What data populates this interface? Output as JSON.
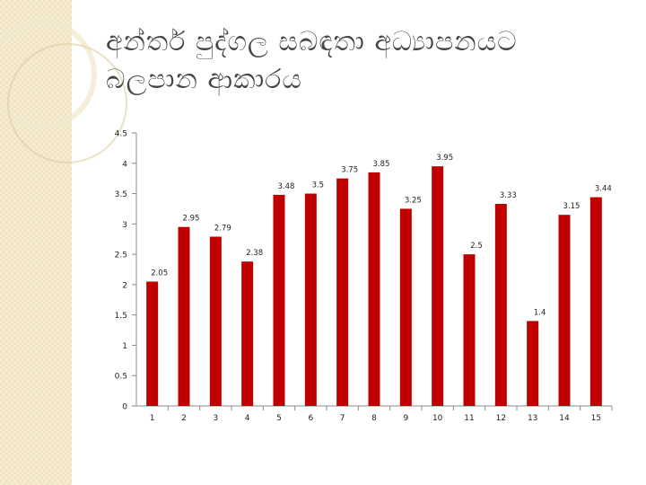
{
  "slide": {
    "title": "අන්තර් පුද්ගල සබඳතා අධ්‍යාපනයට බලපාන ආකාරය"
  },
  "colors": {
    "bar": "#c00000",
    "axis": "#888888",
    "background_strip": "#efe3c0"
  },
  "chart_data": {
    "type": "bar",
    "categories": [
      "1",
      "2",
      "3",
      "4",
      "5",
      "6",
      "7",
      "8",
      "9",
      "10",
      "11",
      "12",
      "13",
      "14",
      "15"
    ],
    "values": [
      2.05,
      2.95,
      2.79,
      2.38,
      3.48,
      3.5,
      3.75,
      3.85,
      3.25,
      3.95,
      2.5,
      3.33,
      1.4,
      3.15,
      3.44
    ],
    "data_labels": [
      "2.05",
      "2.95",
      "2.79",
      "2.38",
      "3.48",
      "3.5",
      "3.75",
      "3.85",
      "3.25",
      "3.95",
      "2.5",
      "3.33",
      "1.4",
      "3.15",
      "3.44"
    ],
    "y_ticks": [
      "0",
      "0.5",
      "1",
      "1.5",
      "2",
      "2.5",
      "3",
      "3.5",
      "4",
      "4.5"
    ],
    "ylim": [
      0,
      4.5
    ],
    "grid": false,
    "legend": "none"
  }
}
